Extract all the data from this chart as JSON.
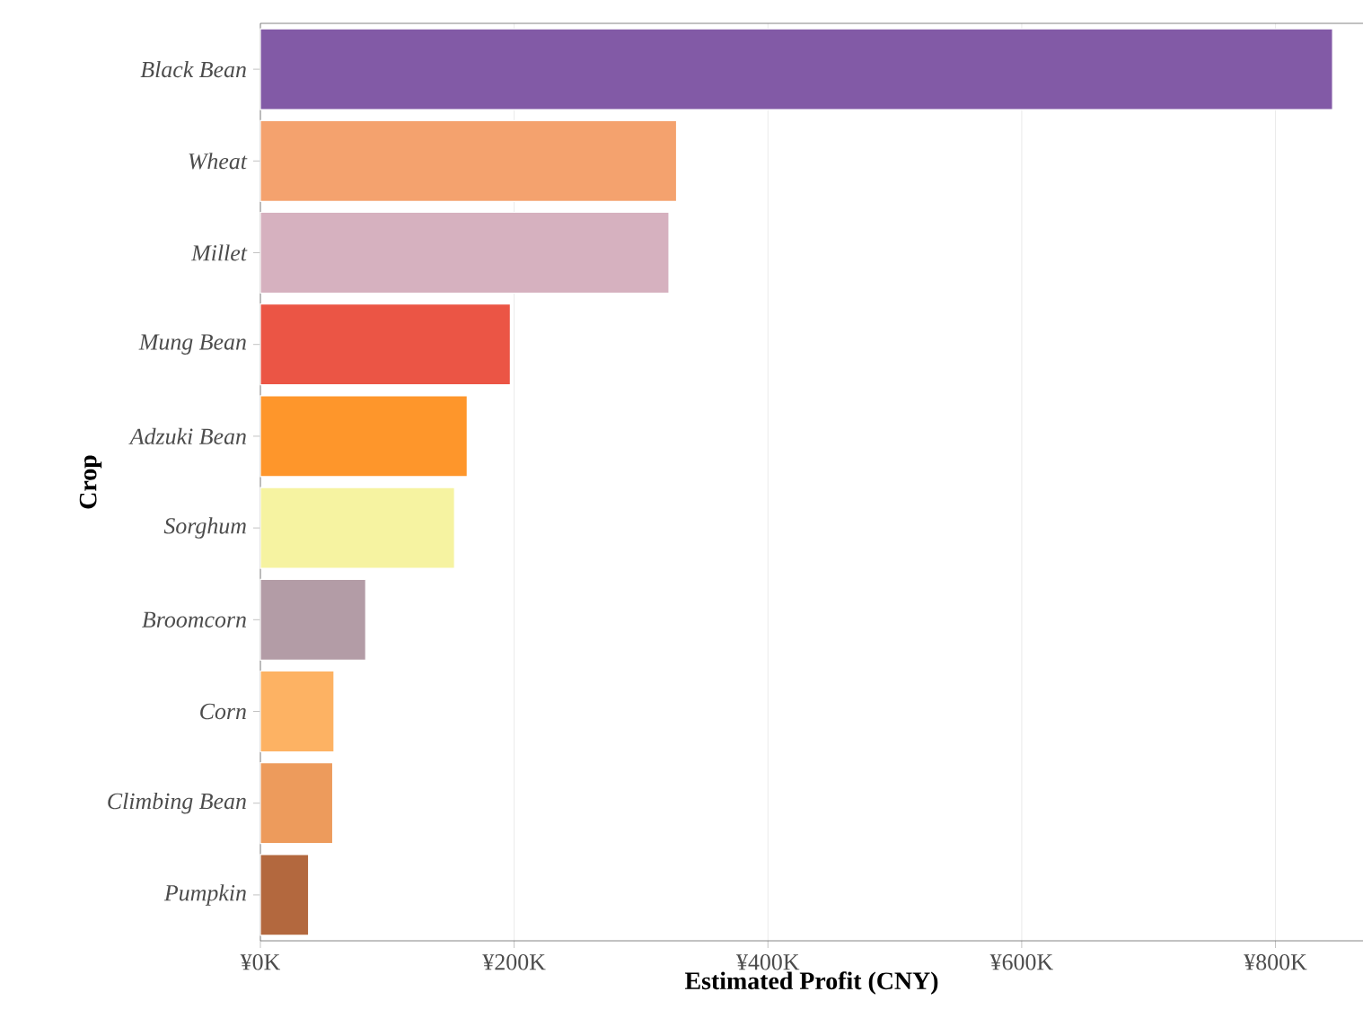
{
  "chart_data": {
    "type": "bar",
    "orientation": "horizontal",
    "xlabel": "Estimated Profit (CNY)",
    "ylabel": "Crop",
    "categories": [
      "Black Bean",
      "Wheat",
      "Millet",
      "Mung Bean",
      "Adzuki Bean",
      "Sorghum",
      "Broomcorn",
      "Corn",
      "Climbing Bean",
      "Pumpkin"
    ],
    "values": [
      845000,
      328000,
      322000,
      197000,
      163000,
      153000,
      83000,
      58000,
      57000,
      38000
    ],
    "colors": [
      "#825aa6",
      "#f4a26e",
      "#d6b1bf",
      "#eb5545",
      "#fe962b",
      "#f6f3a1",
      "#b39ca6",
      "#fdb263",
      "#ed9b5c",
      "#b3683e"
    ],
    "xlim": [
      0,
      869000
    ],
    "xticks": [
      {
        "value": 0,
        "label": "¥0K"
      },
      {
        "value": 200000,
        "label": "¥200K"
      },
      {
        "value": 400000,
        "label": "¥400K"
      },
      {
        "value": 600000,
        "label": "¥600K"
      },
      {
        "value": 800000,
        "label": "¥800K"
      }
    ],
    "grid": "x"
  }
}
